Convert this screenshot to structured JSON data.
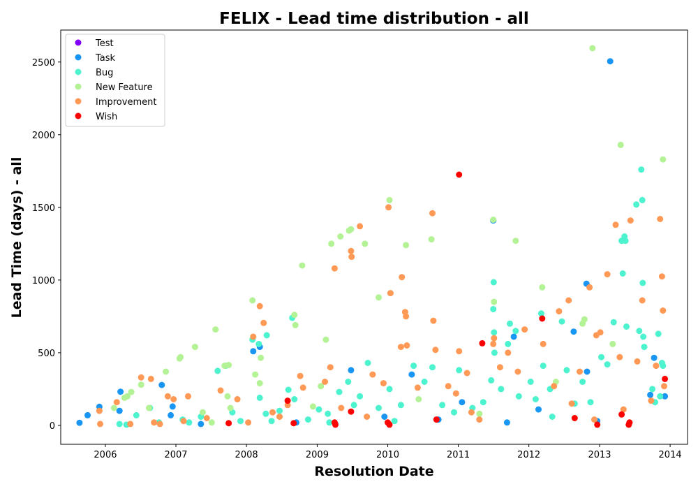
{
  "chart_data": {
    "type": "scatter",
    "title": "FELIX - Lead time distribution - all",
    "xlabel": "Resolution Date",
    "ylabel": "Lead Time (days) - all",
    "xlim": [
      "2005-05-15",
      "2014-04-01"
    ],
    "ylim": [
      -130,
      2720
    ],
    "x_ticks": [
      "2006",
      "2007",
      "2008",
      "2009",
      "2010",
      "2011",
      "2012",
      "2013",
      "2014"
    ],
    "y_ticks": [
      0,
      500,
      1000,
      1500,
      2000,
      2500
    ],
    "grid": false,
    "legend_position": "upper-left",
    "series": [
      {
        "name": "Test",
        "color": "#8000ff",
        "points": []
      },
      {
        "name": "Task",
        "color": "#1996f3",
        "points": [
          [
            "2005-08-20",
            18
          ],
          [
            "2005-10-01",
            70
          ],
          [
            "2005-12-01",
            128
          ],
          [
            "2006-03-20",
            232
          ],
          [
            "2006-03-15",
            100
          ],
          [
            "2006-10-20",
            278
          ],
          [
            "2006-12-15",
            130
          ],
          [
            "2006-12-05",
            70
          ],
          [
            "2008-02-05",
            510
          ],
          [
            "2008-03-10",
            540
          ],
          [
            "2008-09-15",
            20
          ],
          [
            "2009-04-05",
            10
          ],
          [
            "2009-06-25",
            380
          ],
          [
            "2009-12-15",
            60
          ],
          [
            "2010-05-05",
            350
          ],
          [
            "2011-01-20",
            160
          ],
          [
            "2011-07-01",
            1410
          ],
          [
            "2011-10-15",
            610
          ],
          [
            "2012-02-20",
            110
          ],
          [
            "2012-08-20",
            645
          ],
          [
            "2012-10-25",
            975
          ],
          [
            "2012-10-28",
            370
          ],
          [
            "2013-02-25",
            2505
          ],
          [
            "2013-10-10",
            465
          ],
          [
            "2013-12-05",
            200
          ],
          [
            "2013-09-20",
            210
          ],
          [
            "2012-12-20",
            30
          ],
          [
            "2011-09-10",
            20
          ],
          [
            "2010-09-20",
            40
          ],
          [
            "2007-05-10",
            10
          ]
        ]
      },
      {
        "name": "Bug",
        "color": "#4df3ce",
        "points": [
          [
            "2006-03-15",
            10
          ],
          [
            "2006-04-20",
            5
          ],
          [
            "2006-06-10",
            70
          ],
          [
            "2006-08-20",
            120
          ],
          [
            "2006-10-05",
            20
          ],
          [
            "2007-02-05",
            40
          ],
          [
            "2007-05-10",
            60
          ],
          [
            "2007-08-05",
            375
          ],
          [
            "2007-09-15",
            410
          ],
          [
            "2007-10-20",
            90
          ],
          [
            "2007-12-01",
            30
          ],
          [
            "2008-02-01",
            590
          ],
          [
            "2008-03-05",
            560
          ],
          [
            "2008-03-10",
            190
          ],
          [
            "2008-04-10",
            80
          ],
          [
            "2008-04-15",
            620
          ],
          [
            "2008-06-20",
            100
          ],
          [
            "2008-08-05",
            245
          ],
          [
            "2008-08-25",
            740
          ],
          [
            "2008-09-05",
            180
          ],
          [
            "2008-11-15",
            40
          ],
          [
            "2009-01-10",
            110
          ],
          [
            "2009-02-25",
            80
          ],
          [
            "2009-04-25",
            230
          ],
          [
            "2009-06-10",
            300
          ],
          [
            "2009-07-10",
            140
          ],
          [
            "2009-08-10",
            200
          ],
          [
            "2009-09-20",
            430
          ],
          [
            "2009-11-15",
            120
          ],
          [
            "2010-01-10",
            250
          ],
          [
            "2010-03-10",
            140
          ],
          [
            "2010-05-15",
            410
          ],
          [
            "2010-07-10",
            300
          ],
          [
            "2010-08-20",
            400
          ],
          [
            "2010-10-10",
            140
          ],
          [
            "2010-12-10",
            90
          ],
          [
            "2011-01-05",
            380
          ],
          [
            "2011-03-15",
            120
          ],
          [
            "2011-05-10",
            160
          ],
          [
            "2011-06-20",
            310
          ],
          [
            "2011-07-01",
            800
          ],
          [
            "2011-07-03",
            985
          ],
          [
            "2011-07-05",
            640
          ],
          [
            "2011-07-07",
            500
          ],
          [
            "2011-08-10",
            250
          ],
          [
            "2011-09-15",
            560
          ],
          [
            "2011-09-25",
            700
          ],
          [
            "2011-10-25",
            650
          ],
          [
            "2011-11-10",
            200
          ],
          [
            "2012-01-10",
            300
          ],
          [
            "2012-02-05",
            180
          ],
          [
            "2012-03-05",
            770
          ],
          [
            "2012-03-15",
            410
          ],
          [
            "2012-04-20",
            250
          ],
          [
            "2012-06-20",
            715
          ],
          [
            "2012-07-15",
            380
          ],
          [
            "2012-08-25",
            150
          ],
          [
            "2012-10-05",
            300
          ],
          [
            "2012-11-15",
            160
          ],
          [
            "2013-01-10",
            470
          ],
          [
            "2013-02-10",
            420
          ],
          [
            "2013-03-15",
            710
          ],
          [
            "2013-04-25",
            1270
          ],
          [
            "2013-05-10",
            1300
          ],
          [
            "2013-05-15",
            1270
          ],
          [
            "2013-05-20",
            680
          ],
          [
            "2013-05-01",
            1045
          ],
          [
            "2013-07-10",
            1520
          ],
          [
            "2013-08-05",
            1760
          ],
          [
            "2013-08-10",
            1550
          ],
          [
            "2013-08-12",
            980
          ],
          [
            "2013-08-15",
            610
          ],
          [
            "2013-08-20",
            540
          ],
          [
            "2013-07-25",
            650
          ],
          [
            "2013-10-01",
            250
          ],
          [
            "2013-10-15",
            160
          ],
          [
            "2013-11-01",
            630
          ],
          [
            "2013-11-20",
            430
          ],
          [
            "2013-11-25",
            410
          ],
          [
            "2013-11-10",
            200
          ],
          [
            "2012-05-01",
            60
          ],
          [
            "2010-02-05",
            30
          ],
          [
            "2009-03-05",
            20
          ],
          [
            "2008-05-10",
            30
          ],
          [
            "2007-03-10",
            20
          ]
        ]
      },
      {
        "name": "New Feature",
        "color": "#b3f295",
        "points": [
          [
            "2006-02-15",
            120
          ],
          [
            "2006-04-10",
            190
          ],
          [
            "2006-04-25",
            200
          ],
          [
            "2006-05-15",
            230
          ],
          [
            "2006-07-05",
            280
          ],
          [
            "2006-08-15",
            120
          ],
          [
            "2006-11-10",
            370
          ],
          [
            "2007-01-20",
            460
          ],
          [
            "2007-01-25",
            470
          ],
          [
            "2007-04-10",
            540
          ],
          [
            "2007-05-20",
            90
          ],
          [
            "2007-07-05",
            20
          ],
          [
            "2007-07-25",
            660
          ],
          [
            "2007-09-10",
            410
          ],
          [
            "2007-10-01",
            415
          ],
          [
            "2007-09-25",
            200
          ],
          [
            "2007-10-10",
            120
          ],
          [
            "2008-02-01",
            860
          ],
          [
            "2008-02-15",
            350
          ],
          [
            "2008-03-15",
            465
          ],
          [
            "2008-03-10",
            290
          ],
          [
            "2008-06-20",
            60
          ],
          [
            "2008-09-05",
            760
          ],
          [
            "2008-09-10",
            690
          ],
          [
            "2008-10-15",
            1100
          ],
          [
            "2009-02-15",
            590
          ],
          [
            "2009-03-15",
            1250
          ],
          [
            "2009-05-01",
            1300
          ],
          [
            "2009-06-15",
            1340
          ],
          [
            "2009-06-25",
            1350
          ],
          [
            "2009-09-05",
            1250
          ],
          [
            "2009-11-15",
            880
          ],
          [
            "2010-01-10",
            1550
          ],
          [
            "2010-04-05",
            1240
          ],
          [
            "2010-08-15",
            1280
          ],
          [
            "2011-07-01",
            1415
          ],
          [
            "2011-07-05",
            850
          ],
          [
            "2011-10-25",
            1270
          ],
          [
            "2012-03-10",
            950
          ],
          [
            "2012-10-05",
            700
          ],
          [
            "2012-10-15",
            730
          ],
          [
            "2012-11-25",
            2595
          ],
          [
            "2013-04-20",
            1930
          ],
          [
            "2013-11-25",
            1830
          ],
          [
            "2012-05-20",
            300
          ],
          [
            "2010-06-10",
            180
          ],
          [
            "2008-12-10",
            130
          ],
          [
            "2011-04-20",
            80
          ],
          [
            "2013-03-10",
            560
          ],
          [
            "2009-01-20",
            270
          ]
        ]
      },
      {
        "name": "Improvement",
        "color": "#ff9955",
        "points": [
          [
            "2005-12-01",
            100
          ],
          [
            "2005-12-05",
            10
          ],
          [
            "2006-03-01",
            160
          ],
          [
            "2006-05-10",
            10
          ],
          [
            "2006-07-05",
            330
          ],
          [
            "2006-08-25",
            320
          ],
          [
            "2006-10-10",
            10
          ],
          [
            "2006-11-20",
            200
          ],
          [
            "2006-12-20",
            180
          ],
          [
            "2007-03-05",
            200
          ],
          [
            "2007-06-10",
            50
          ],
          [
            "2007-08-20",
            240
          ],
          [
            "2007-11-15",
            180
          ],
          [
            "2008-01-10",
            20
          ],
          [
            "2008-02-05",
            610
          ],
          [
            "2008-03-10",
            820
          ],
          [
            "2008-03-30",
            705
          ],
          [
            "2008-05-15",
            90
          ],
          [
            "2008-08-01",
            140
          ],
          [
            "2008-10-05",
            340
          ],
          [
            "2008-10-20",
            260
          ],
          [
            "2009-02-10",
            300
          ],
          [
            "2009-03-10",
            400
          ],
          [
            "2009-04-01",
            1080
          ],
          [
            "2009-06-25",
            1200
          ],
          [
            "2009-06-28",
            1160
          ],
          [
            "2009-08-10",
            1370
          ],
          [
            "2009-10-15",
            350
          ],
          [
            "2009-12-10",
            290
          ],
          [
            "2010-01-05",
            1500
          ],
          [
            "2010-01-15",
            910
          ],
          [
            "2010-03-15",
            1020
          ],
          [
            "2010-03-10",
            540
          ],
          [
            "2010-04-01",
            780
          ],
          [
            "2010-04-05",
            750
          ],
          [
            "2010-04-10",
            550
          ],
          [
            "2010-06-05",
            260
          ],
          [
            "2010-08-20",
            1460
          ],
          [
            "2010-08-25",
            720
          ],
          [
            "2010-09-05",
            520
          ],
          [
            "2010-11-10",
            270
          ],
          [
            "2011-01-05",
            510
          ],
          [
            "2011-02-15",
            360
          ],
          [
            "2011-04-20",
            40
          ],
          [
            "2011-07-01",
            560
          ],
          [
            "2011-07-05",
            600
          ],
          [
            "2011-08-05",
            400
          ],
          [
            "2011-09-15",
            500
          ],
          [
            "2011-11-05",
            370
          ],
          [
            "2011-12-10",
            660
          ],
          [
            "2012-03-15",
            560
          ],
          [
            "2012-05-10",
            270
          ],
          [
            "2012-06-05",
            785
          ],
          [
            "2012-07-25",
            860
          ],
          [
            "2012-09-20",
            370
          ],
          [
            "2012-11-10",
            950
          ],
          [
            "2012-12-15",
            620
          ],
          [
            "2013-01-05",
            640
          ],
          [
            "2013-02-10",
            1040
          ],
          [
            "2013-03-25",
            1380
          ],
          [
            "2013-04-15",
            470
          ],
          [
            "2013-06-10",
            1410
          ],
          [
            "2013-07-15",
            440
          ],
          [
            "2013-08-10",
            860
          ],
          [
            "2013-11-10",
            1420
          ],
          [
            "2013-11-20",
            1025
          ],
          [
            "2013-11-25",
            790
          ],
          [
            "2013-10-20",
            410
          ],
          [
            "2013-12-01",
            270
          ],
          [
            "2013-09-25",
            170
          ],
          [
            "2012-08-10",
            150
          ],
          [
            "2010-12-20",
            220
          ],
          [
            "2009-05-05",
            120
          ],
          [
            "2008-06-20",
            60
          ],
          [
            "2007-02-10",
            30
          ],
          [
            "2006-09-10",
            20
          ],
          [
            "2011-03-10",
            90
          ],
          [
            "2012-12-05",
            40
          ],
          [
            "2013-05-05",
            110
          ],
          [
            "2009-09-15",
            60
          ]
        ]
      },
      {
        "name": "Wish",
        "color": "#ff0000",
        "points": [
          [
            "2007-10-01",
            15
          ],
          [
            "2008-08-01",
            170
          ],
          [
            "2008-09-01",
            15
          ],
          [
            "2009-04-01",
            20
          ],
          [
            "2009-04-05",
            5
          ],
          [
            "2009-06-25",
            95
          ],
          [
            "2010-01-01",
            20
          ],
          [
            "2010-01-10",
            5
          ],
          [
            "2010-09-10",
            40
          ],
          [
            "2011-01-05",
            1725
          ],
          [
            "2011-05-05",
            565
          ],
          [
            "2012-03-10",
            735
          ],
          [
            "2012-08-25",
            50
          ],
          [
            "2012-12-20",
            5
          ],
          [
            "2013-04-25",
            75
          ],
          [
            "2013-06-05",
            20
          ],
          [
            "2013-06-01",
            5
          ],
          [
            "2013-12-05",
            320
          ]
        ]
      }
    ]
  }
}
